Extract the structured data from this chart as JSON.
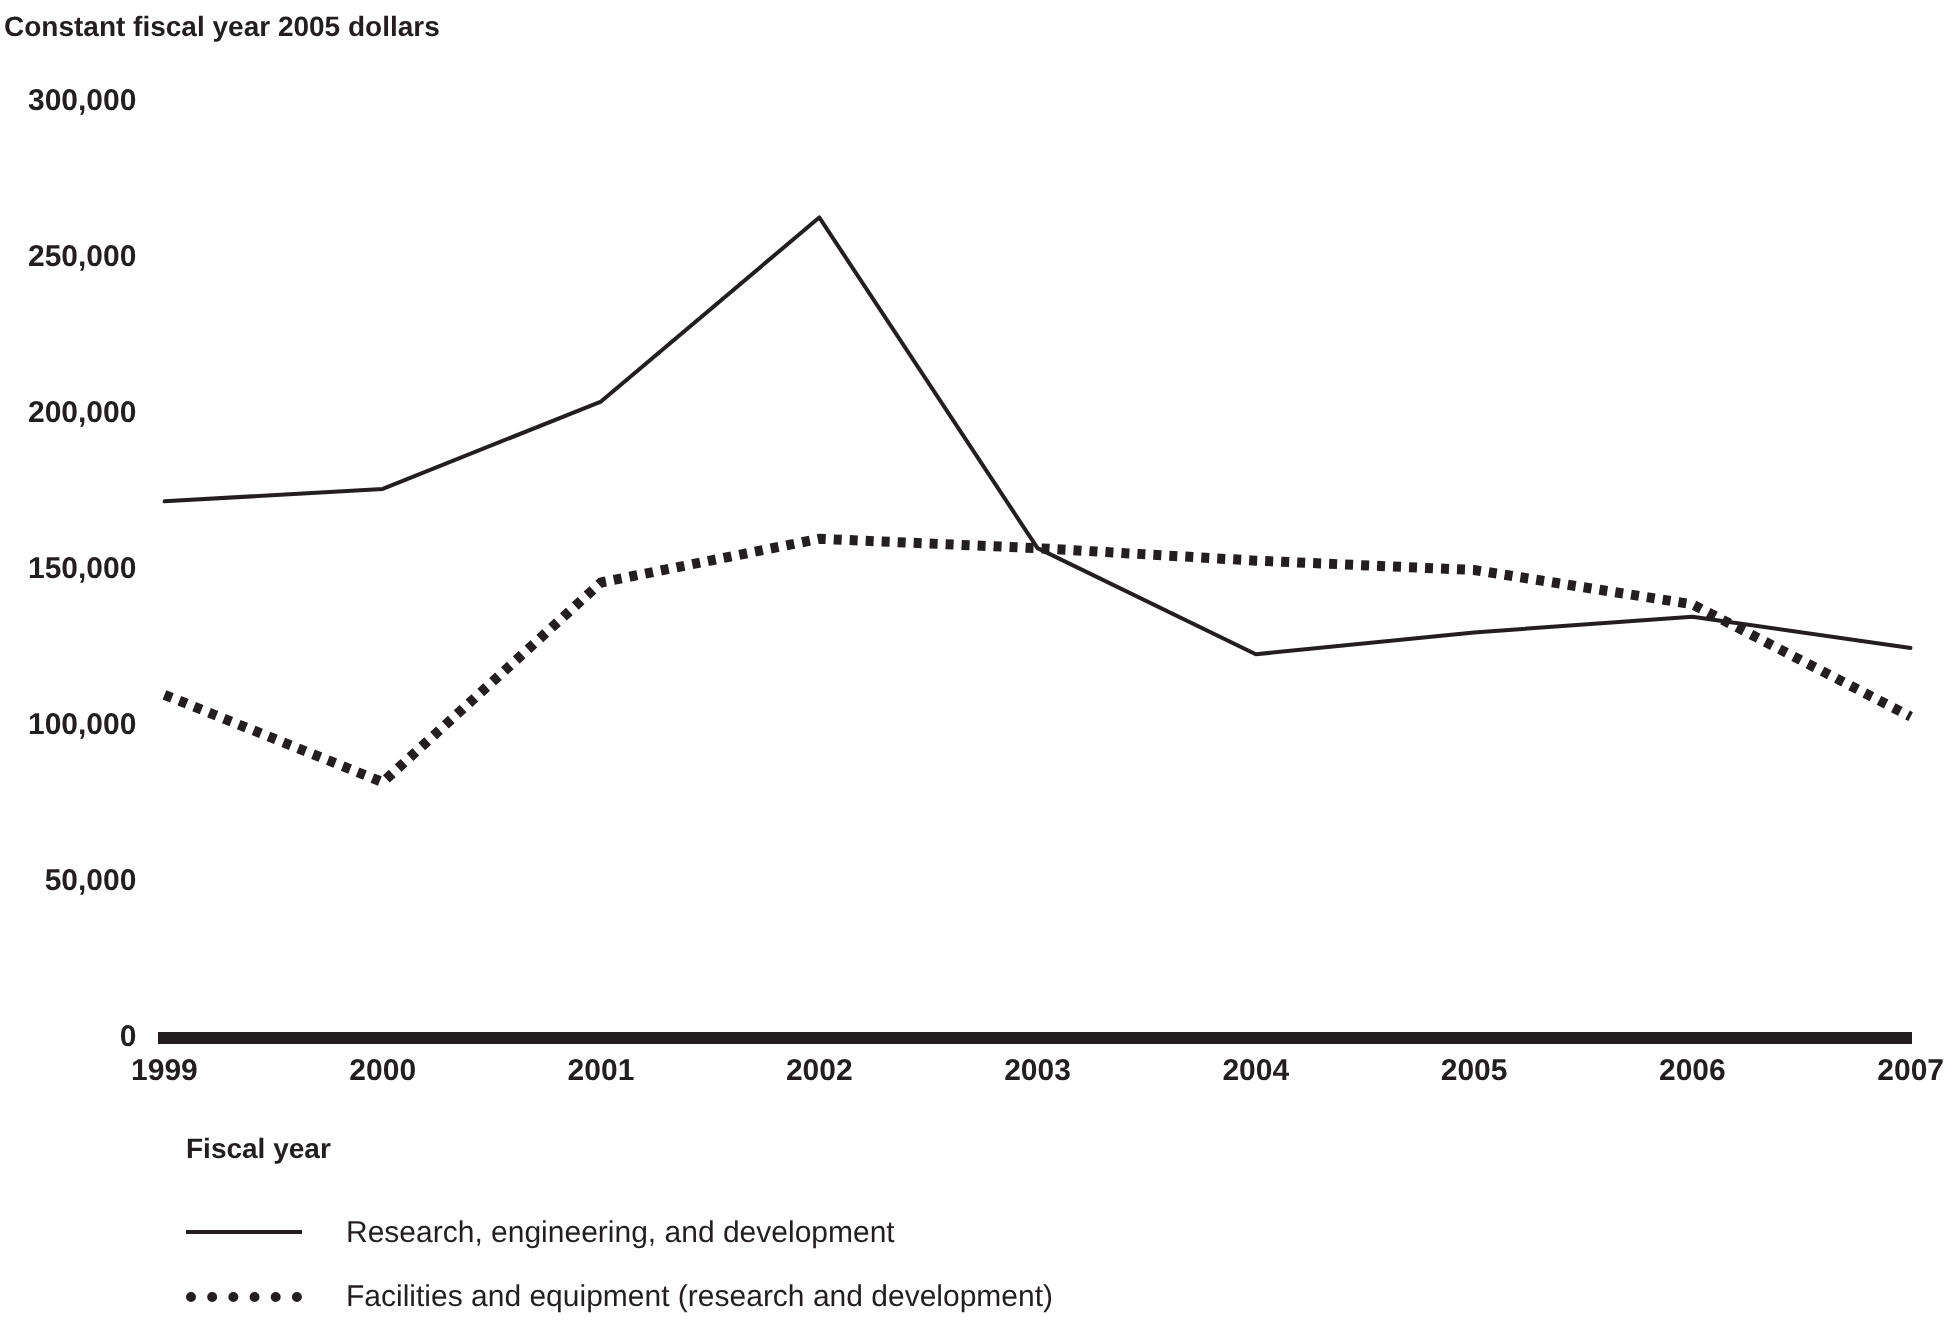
{
  "chart_data": {
    "type": "line",
    "ylabel": "Constant fiscal year 2005 dollars",
    "xlabel": "Fiscal year",
    "categories": [
      "1999",
      "2000",
      "2001",
      "2002",
      "2003",
      "2004",
      "2005",
      "2006",
      "2007"
    ],
    "series": [
      {
        "name": "Research, engineering, and development",
        "color": "#231f20",
        "line_style": "solid",
        "values": [
          172000,
          176000,
          204000,
          263000,
          157000,
          123000,
          130000,
          135000,
          125000
        ]
      },
      {
        "name": "Facilities and equipment (research and development)",
        "color": "#231f20",
        "line_style": "dotted",
        "values": [
          110000,
          82000,
          146000,
          160000,
          157000,
          153000,
          150000,
          139000,
          103000
        ]
      }
    ],
    "ylim": [
      0,
      300000
    ],
    "yticks": [
      0,
      {
        "value": 50000,
        "label": "50,000"
      },
      {
        "value": 100000,
        "label": "100,000"
      },
      {
        "value": 150000,
        "label": "150,000"
      },
      {
        "value": 200000,
        "label": "200,000"
      },
      {
        "value": 250000,
        "label": "250,000"
      },
      {
        "value": 300000,
        "label": "300,000"
      }
    ],
    "grid": false,
    "legend": "bottom",
    "marker": "none"
  }
}
